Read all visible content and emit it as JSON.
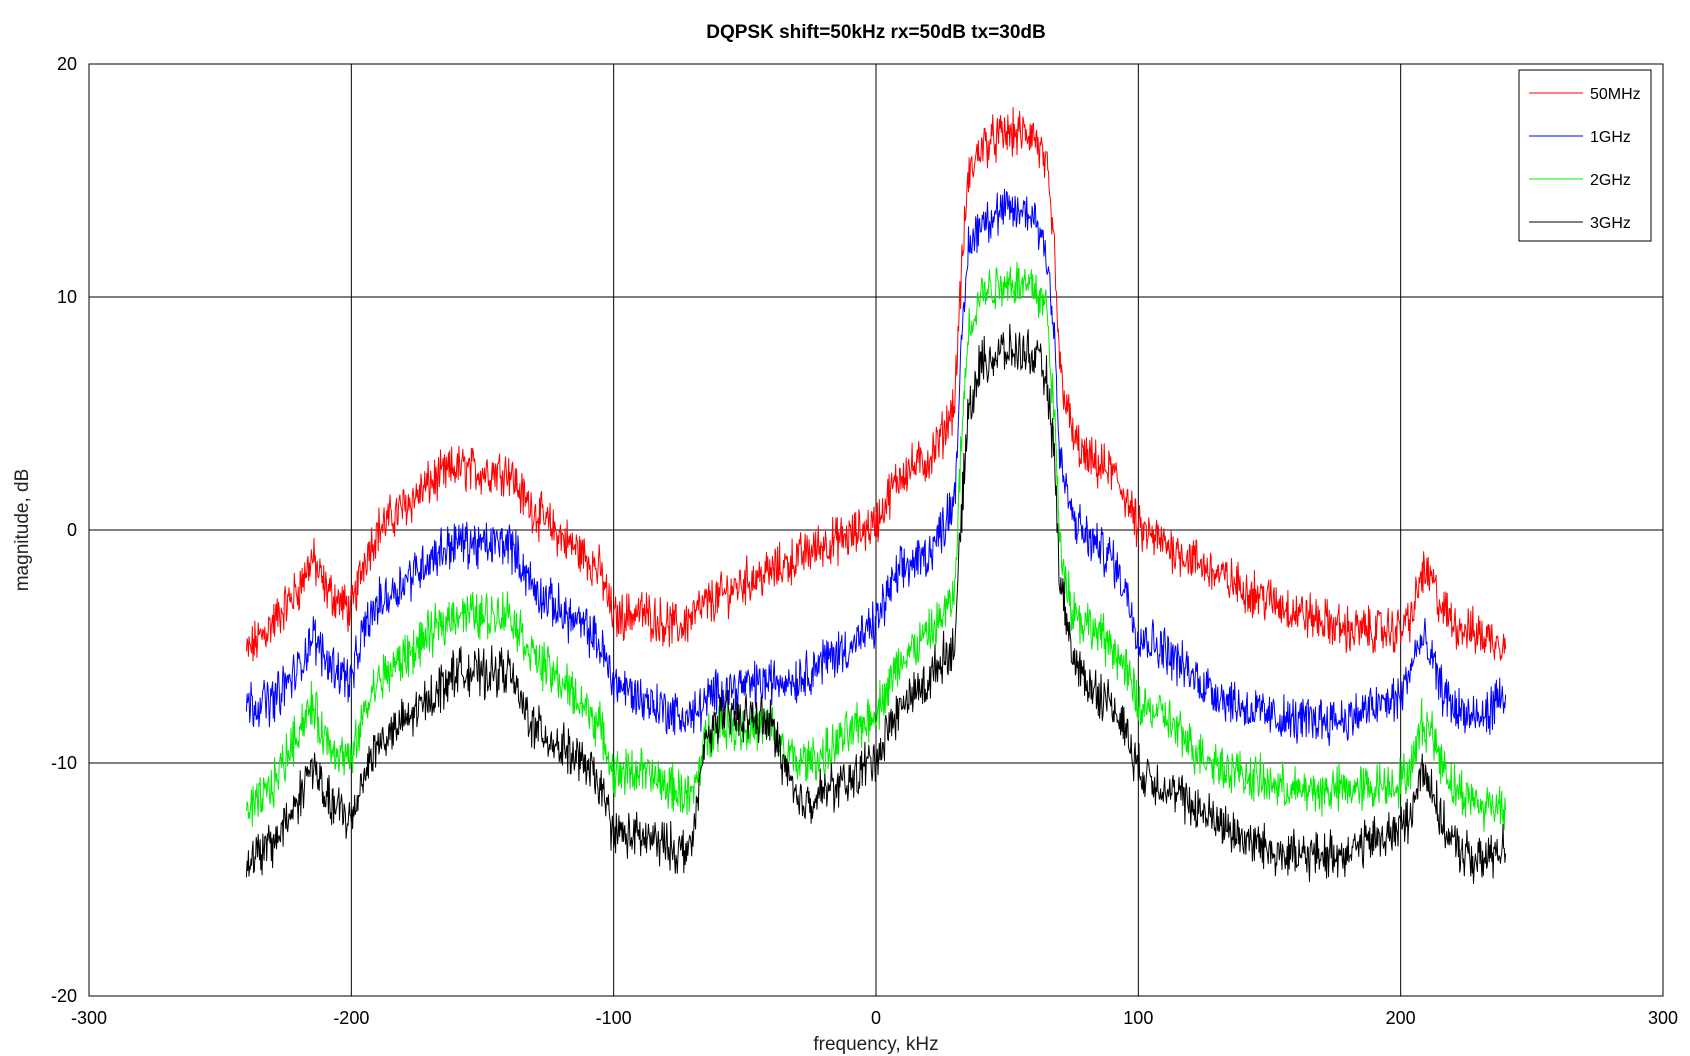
{
  "chart_data": {
    "type": "line",
    "title": "DQPSK shift=50kHz rx=50dB tx=30dB",
    "xlabel": "frequency, kHz",
    "ylabel": "magnitude, dB",
    "xlim": [
      -300,
      300
    ],
    "ylim": [
      -20,
      20
    ],
    "xticks": [
      -300,
      -200,
      -100,
      0,
      100,
      200,
      300
    ],
    "yticks": [
      -20,
      -10,
      0,
      10,
      20
    ],
    "grid": true,
    "legend_position": "top-right",
    "x": [
      -240,
      -230,
      -220,
      -215,
      -210,
      -200,
      -195,
      -190,
      -180,
      -170,
      -160,
      -150,
      -140,
      -135,
      -130,
      -120,
      -110,
      -105,
      -100,
      -90,
      -80,
      -75,
      -70,
      -65,
      -60,
      -50,
      -40,
      -35,
      -30,
      -20,
      -10,
      -5,
      0,
      5,
      10,
      20,
      25,
      30,
      32,
      35,
      40,
      50,
      60,
      65,
      68,
      70,
      75,
      80,
      90,
      95,
      100,
      110,
      120,
      130,
      140,
      150,
      160,
      170,
      180,
      190,
      200,
      205,
      208,
      212,
      215,
      220,
      230,
      240
    ],
    "series": [
      {
        "name": "50MHz",
        "color": "#ff0000",
        "values": [
          -5.3,
          -4.0,
          -2.5,
          -1.2,
          -2.5,
          -3.5,
          -1.2,
          0.0,
          1.0,
          2.0,
          2.7,
          2.5,
          2.6,
          1.5,
          0.8,
          -0.3,
          -1.2,
          -1.8,
          -3.8,
          -3.5,
          -4.0,
          -4.2,
          -3.7,
          -3.2,
          -2.9,
          -2.2,
          -1.8,
          -1.5,
          -1.2,
          -0.6,
          -0.3,
          0.0,
          0.3,
          1.5,
          2.5,
          3.0,
          4.0,
          5.5,
          10.0,
          15.0,
          16.5,
          17.0,
          17.0,
          15.5,
          12.0,
          7.0,
          4.0,
          3.0,
          2.5,
          1.5,
          0.0,
          -0.6,
          -1.2,
          -1.9,
          -2.5,
          -3.0,
          -3.5,
          -3.9,
          -4.3,
          -4.3,
          -4.3,
          -3.5,
          -1.8,
          -2.2,
          -3.2,
          -4.0,
          -4.5,
          -4.8
        ]
      },
      {
        "name": "1GHz",
        "color": "#0000ff",
        "values": [
          -7.5,
          -7.3,
          -6.0,
          -4.5,
          -5.5,
          -6.5,
          -4.2,
          -3.2,
          -2.2,
          -1.2,
          -0.5,
          -0.7,
          -0.5,
          -1.5,
          -2.6,
          -3.5,
          -4.3,
          -5.0,
          -6.5,
          -7.2,
          -7.7,
          -8.0,
          -8.0,
          -7.4,
          -6.9,
          -6.7,
          -6.5,
          -6.4,
          -6.4,
          -5.6,
          -5.0,
          -4.6,
          -4.0,
          -2.6,
          -1.7,
          -1.0,
          0.0,
          1.5,
          6.5,
          12.0,
          13.3,
          13.7,
          13.6,
          12.0,
          8.5,
          3.0,
          0.5,
          -0.3,
          -1.2,
          -2.5,
          -4.5,
          -5.1,
          -6.2,
          -7.0,
          -7.6,
          -8.0,
          -8.2,
          -8.1,
          -8.1,
          -7.6,
          -7.2,
          -5.5,
          -4.7,
          -5.6,
          -6.7,
          -7.6,
          -8.2,
          -7.0
        ]
      },
      {
        "name": "2GHz",
        "color": "#00ee00",
        "values": [
          -12.3,
          -11.0,
          -8.5,
          -7.5,
          -9.0,
          -10.0,
          -7.8,
          -6.5,
          -5.5,
          -4.5,
          -3.5,
          -3.7,
          -3.5,
          -4.5,
          -5.5,
          -6.5,
          -7.7,
          -8.5,
          -10.5,
          -10.3,
          -11.0,
          -11.2,
          -11.5,
          -9.0,
          -8.3,
          -8.5,
          -8.5,
          -9.5,
          -10.0,
          -9.7,
          -8.7,
          -8.3,
          -7.8,
          -6.6,
          -5.5,
          -4.5,
          -3.8,
          -2.8,
          2.5,
          8.5,
          10.2,
          10.7,
          10.5,
          9.5,
          5.0,
          -0.5,
          -3.5,
          -4.0,
          -5.0,
          -6.0,
          -7.5,
          -8.0,
          -9.3,
          -10.0,
          -10.5,
          -10.9,
          -11.2,
          -11.2,
          -11.1,
          -11.0,
          -10.8,
          -10.0,
          -8.2,
          -8.7,
          -9.7,
          -11.0,
          -11.8,
          -11.8
        ]
      },
      {
        "name": "3GHz",
        "color": "#000000",
        "values": [
          -14.3,
          -13.5,
          -11.5,
          -10.0,
          -11.5,
          -12.5,
          -10.3,
          -9.2,
          -8.3,
          -7.2,
          -6.0,
          -6.2,
          -6.0,
          -7.5,
          -8.5,
          -9.3,
          -10.2,
          -11.0,
          -13.0,
          -13.2,
          -13.5,
          -13.8,
          -13.5,
          -9.0,
          -8.0,
          -8.0,
          -8.3,
          -10.0,
          -11.8,
          -11.2,
          -10.8,
          -10.2,
          -9.8,
          -8.5,
          -7.5,
          -6.5,
          -5.5,
          -5.0,
          -0.5,
          5.0,
          7.2,
          7.7,
          7.5,
          6.5,
          3.0,
          -2.0,
          -5.5,
          -6.5,
          -7.5,
          -8.5,
          -10.3,
          -11.0,
          -11.8,
          -12.5,
          -13.2,
          -13.7,
          -14.0,
          -14.0,
          -13.8,
          -13.3,
          -12.8,
          -12.0,
          -10.0,
          -11.0,
          -12.5,
          -13.5,
          -14.3,
          -13.5
        ]
      }
    ]
  }
}
